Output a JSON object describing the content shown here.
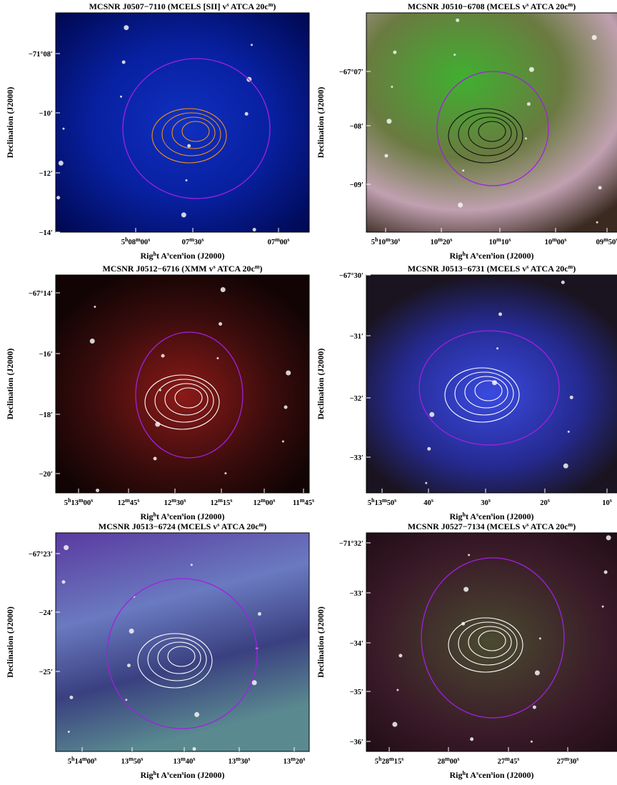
{
  "panels": [
    {
      "title": "MCSNR J0507−7110 (MCELS [SII] vs ATCA 20cm)",
      "xlabel": "Right Ascension (J2000)",
      "ylabel": "Declination (J2000)",
      "xticks": [
        "5h08m00s",
        "07m30s",
        "07m00s"
      ],
      "yticks": [
        "−71°08′",
        "−10′",
        "−12′",
        "−14′"
      ]
    },
    {
      "title": "MCSNR J0510−6708 (MCELS vs ATCA 20cm)",
      "xlabel": "Right Ascension (J2000)",
      "ylabel": "Declination (J2000)",
      "xticks": [
        "5h10m30s",
        "10m20s",
        "10m10s",
        "10m00s",
        "09m50s"
      ],
      "yticks": [
        "−67°07′",
        "−08′",
        "−09′"
      ]
    },
    {
      "title": "MCSNR J0512−6716 (XMM vs ATCA 20cm)",
      "xlabel": "Right Ascension (J2000)",
      "ylabel": "Declination (J2000)",
      "xticks": [
        "5h13m00s",
        "12m45s",
        "12m30s",
        "12m15s",
        "12m00s",
        "11m45s"
      ],
      "yticks": [
        "−67°14′",
        "−16′",
        "−18′",
        "−20′"
      ]
    },
    {
      "title": "MCSNR J0513−6731 (MCELS vs ATCA 20cm)",
      "xlabel": "Right Ascension (J2000)",
      "ylabel": "Declination (J2000)",
      "xticks": [
        "5h13m50s",
        "40s",
        "30s",
        "20s",
        "10s"
      ],
      "yticks": [
        "−67°30′",
        "−31′",
        "−32′",
        "−33′"
      ]
    },
    {
      "title": "MCSNR J0513−6724 (MCELS vs ATCA 20cm)",
      "xlabel": "Right Ascension (J2000)",
      "ylabel": "Declination (J2000)",
      "xticks": [
        "5h14m00s",
        "13m50s",
        "13m40s",
        "13m30s",
        "13m20s"
      ],
      "yticks": [
        "−67°23′",
        "−24′",
        "−25′"
      ]
    },
    {
      "title": "MCSNR J0527−7134 (MCELS vs ATCA 20cm)",
      "xlabel": "Right Ascension (J2000)",
      "ylabel": "Declination (J2000)",
      "xticks": [
        "5h28m15s",
        "28m00s",
        "27m45s",
        "27m30s"
      ],
      "yticks": [
        "−71°32′",
        "−33′",
        "−34′",
        "−35′",
        "−36′"
      ]
    }
  ]
}
